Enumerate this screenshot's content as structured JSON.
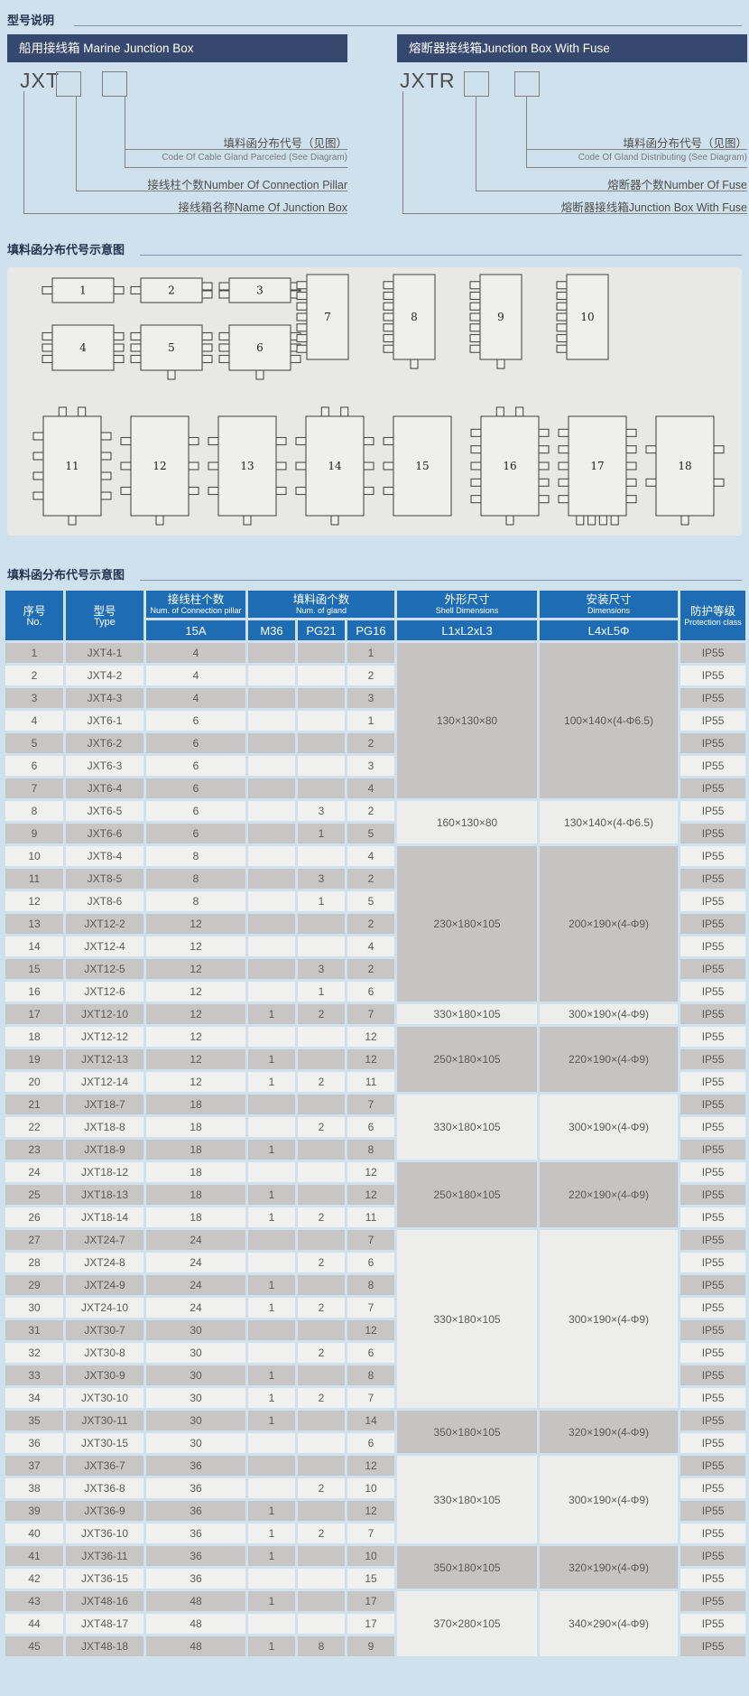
{
  "colors": {
    "page_bg": "#cfe1ed",
    "navy_bar": "#37486e",
    "table_header_blue": "#1e6db4",
    "row_gray": "#c7c6c4",
    "row_light": "#f0f0ee",
    "panel_gray": "#e8e8e6"
  },
  "sections": {
    "model_description_title": "型号说明",
    "gland_diagram_title": "填料函分布代号示意图",
    "gland_table_title": "填料函分布代号示意图"
  },
  "marine": {
    "header": "船用接线箱 Marine Junction Box",
    "code": "JXT",
    "gland_zh": "填料函分布代号（见图）",
    "gland_en": "Code Of Cable Gland Parceled (See Diagram)",
    "pillar": "接线柱个数Number Of Connection Pillar",
    "name": "接线箱名称Name Of Junction Box"
  },
  "fuse": {
    "header": "熔断器接线箱Junction Box With Fuse",
    "code": "JXTR",
    "gland_zh": "填料函分布代号（见图）",
    "gland_en": "Code Of Gland Distributing (See Diagram)",
    "count": "熔断器个数Number Of Fuse",
    "name": "熔断器接线箱Junction Box With Fuse"
  },
  "diagram": {
    "boxes": [
      {
        "label": "1",
        "tabs": {
          "l": 1,
          "r": 1,
          "t": 0,
          "b": 0
        }
      },
      {
        "label": "2",
        "tabs": {
          "l": 1,
          "r": 2,
          "t": 0,
          "b": 0
        }
      },
      {
        "label": "3",
        "tabs": {
          "l": 2,
          "r": 2,
          "t": 0,
          "b": 0
        }
      },
      {
        "label": "4",
        "tabs": {
          "l": 3,
          "r": 3,
          "t": 0,
          "b": 0
        }
      },
      {
        "label": "5",
        "tabs": {
          "l": 3,
          "r": 3,
          "t": 0,
          "b": 1
        }
      },
      {
        "label": "6",
        "tabs": {
          "l": 3,
          "r": 3,
          "t": 0,
          "b": 1
        }
      },
      {
        "label": "7",
        "tabs": {
          "l": 7,
          "r": 0,
          "t": 0,
          "b": 0
        }
      },
      {
        "label": "8",
        "tabs": {
          "l": 7,
          "r": 0,
          "t": 0,
          "b": 1
        }
      },
      {
        "label": "9",
        "tabs": {
          "l": 7,
          "r": 0,
          "t": 0,
          "b": 1
        }
      },
      {
        "label": "10",
        "tabs": {
          "l": 7,
          "r": 0,
          "t": 0,
          "b": 0
        }
      },
      {
        "label": "11",
        "tabs": {
          "l": 4,
          "r": 4,
          "t": 2,
          "b": 1
        }
      },
      {
        "label": "12",
        "tabs": {
          "l": 3,
          "r": 3,
          "t": 0,
          "b": 1
        }
      },
      {
        "label": "13",
        "tabs": {
          "l": 3,
          "r": 3,
          "t": 0,
          "b": 1
        }
      },
      {
        "label": "14",
        "tabs": {
          "l": 3,
          "r": 3,
          "t": 2,
          "b": 1
        }
      },
      {
        "label": "15",
        "tabs": {
          "l": 3,
          "r": 0,
          "t": 0,
          "b": 0
        }
      },
      {
        "label": "16",
        "tabs": {
          "l": 5,
          "r": 5,
          "t": 2,
          "b": 1
        }
      },
      {
        "label": "17",
        "tabs": {
          "l": 5,
          "r": 5,
          "t": 0,
          "b": 4
        }
      },
      {
        "label": "18",
        "tabs": {
          "l": 2,
          "r": 2,
          "t": 0,
          "b": 1
        }
      }
    ]
  },
  "table": {
    "headers": {
      "no_zh": "序号",
      "no_en": "No.",
      "type_zh": "型号",
      "type_en": "Type",
      "pillar_zh": "接线柱个数",
      "pillar_en": "Num. of Connection pillar",
      "gland_zh": "填料函个数",
      "gland_en": "Num. of gland",
      "shell_zh": "外形尺寸",
      "shell_en": "Shell Dimensions",
      "mount_zh": "安装尺寸",
      "mount_en": "Dimensions",
      "prot_zh": "防护等级",
      "prot_en": "Protection class",
      "sub_15a": "15A",
      "sub_m36": "M36",
      "sub_pg21": "PG21",
      "sub_pg16": "PG16",
      "sub_shell": "L1xL2xL3",
      "sub_mount": "L4xL5Φ"
    },
    "rows": [
      {
        "no": "1",
        "type": "JXT4-1",
        "p15a": "4",
        "m36": "",
        "pg21": "",
        "pg16": "1",
        "prot": "IP55"
      },
      {
        "no": "2",
        "type": "JXT4-2",
        "p15a": "4",
        "m36": "",
        "pg21": "",
        "pg16": "2",
        "prot": "IP55"
      },
      {
        "no": "3",
        "type": "JXT4-3",
        "p15a": "4",
        "m36": "",
        "pg21": "",
        "pg16": "3",
        "prot": "IP55"
      },
      {
        "no": "4",
        "type": "JXT6-1",
        "p15a": "6",
        "m36": "",
        "pg21": "",
        "pg16": "1",
        "prot": "IP55"
      },
      {
        "no": "5",
        "type": "JXT6-2",
        "p15a": "6",
        "m36": "",
        "pg21": "",
        "pg16": "2",
        "prot": "IP55"
      },
      {
        "no": "6",
        "type": "JXT6-3",
        "p15a": "6",
        "m36": "",
        "pg21": "",
        "pg16": "3",
        "prot": "IP55"
      },
      {
        "no": "7",
        "type": "JXT6-4",
        "p15a": "6",
        "m36": "",
        "pg21": "",
        "pg16": "4",
        "prot": "IP55"
      },
      {
        "no": "8",
        "type": "JXT6-5",
        "p15a": "6",
        "m36": "",
        "pg21": "3",
        "pg16": "2",
        "prot": "IP55"
      },
      {
        "no": "9",
        "type": "JXT6-6",
        "p15a": "6",
        "m36": "",
        "pg21": "1",
        "pg16": "5",
        "prot": "IP55"
      },
      {
        "no": "10",
        "type": "JXT8-4",
        "p15a": "8",
        "m36": "",
        "pg21": "",
        "pg16": "4",
        "prot": "IP55"
      },
      {
        "no": "11",
        "type": "JXT8-5",
        "p15a": "8",
        "m36": "",
        "pg21": "3",
        "pg16": "2",
        "prot": "IP55"
      },
      {
        "no": "12",
        "type": "JXT8-6",
        "p15a": "8",
        "m36": "",
        "pg21": "1",
        "pg16": "5",
        "prot": "IP55"
      },
      {
        "no": "13",
        "type": "JXT12-2",
        "p15a": "12",
        "m36": "",
        "pg21": "",
        "pg16": "2",
        "prot": "IP55"
      },
      {
        "no": "14",
        "type": "JXT12-4",
        "p15a": "12",
        "m36": "",
        "pg21": "",
        "pg16": "4",
        "prot": "IP55"
      },
      {
        "no": "15",
        "type": "JXT12-5",
        "p15a": "12",
        "m36": "",
        "pg21": "3",
        "pg16": "2",
        "prot": "IP55"
      },
      {
        "no": "16",
        "type": "JXT12-6",
        "p15a": "12",
        "m36": "",
        "pg21": "1",
        "pg16": "6",
        "prot": "IP55"
      },
      {
        "no": "17",
        "type": "JXT12-10",
        "p15a": "12",
        "m36": "1",
        "pg21": "2",
        "pg16": "7",
        "prot": "IP55"
      },
      {
        "no": "18",
        "type": "JXT12-12",
        "p15a": "12",
        "m36": "",
        "pg21": "",
        "pg16": "12",
        "prot": "IP55"
      },
      {
        "no": "19",
        "type": "JXT12-13",
        "p15a": "12",
        "m36": "1",
        "pg21": "",
        "pg16": "12",
        "prot": "IP55"
      },
      {
        "no": "20",
        "type": "JXT12-14",
        "p15a": "12",
        "m36": "1",
        "pg21": "2",
        "pg16": "11",
        "prot": "IP55"
      },
      {
        "no": "21",
        "type": "JXT18-7",
        "p15a": "18",
        "m36": "",
        "pg21": "",
        "pg16": "7",
        "prot": "IP55"
      },
      {
        "no": "22",
        "type": "JXT18-8",
        "p15a": "18",
        "m36": "",
        "pg21": "2",
        "pg16": "6",
        "prot": "IP55"
      },
      {
        "no": "23",
        "type": "JXT18-9",
        "p15a": "18",
        "m36": "1",
        "pg21": "",
        "pg16": "8",
        "prot": "IP55"
      },
      {
        "no": "24",
        "type": "JXT18-12",
        "p15a": "18",
        "m36": "",
        "pg21": "",
        "pg16": "12",
        "prot": "IP55"
      },
      {
        "no": "25",
        "type": "JXT18-13",
        "p15a": "18",
        "m36": "1",
        "pg21": "",
        "pg16": "12",
        "prot": "IP55"
      },
      {
        "no": "26",
        "type": "JXT18-14",
        "p15a": "18",
        "m36": "1",
        "pg21": "2",
        "pg16": "11",
        "prot": "IP55"
      },
      {
        "no": "27",
        "type": "JXT24-7",
        "p15a": "24",
        "m36": "",
        "pg21": "",
        "pg16": "7",
        "prot": "IP55"
      },
      {
        "no": "28",
        "type": "JXT24-8",
        "p15a": "24",
        "m36": "",
        "pg21": "2",
        "pg16": "6",
        "prot": "IP55"
      },
      {
        "no": "29",
        "type": "JXT24-9",
        "p15a": "24",
        "m36": "1",
        "pg21": "",
        "pg16": "8",
        "prot": "IP55"
      },
      {
        "no": "30",
        "type": "JXT24-10",
        "p15a": "24",
        "m36": "1",
        "pg21": "2",
        "pg16": "7",
        "prot": "IP55"
      },
      {
        "no": "31",
        "type": "JXT30-7",
        "p15a": "30",
        "m36": "",
        "pg21": "",
        "pg16": "12",
        "prot": "IP55"
      },
      {
        "no": "32",
        "type": "JXT30-8",
        "p15a": "30",
        "m36": "",
        "pg21": "2",
        "pg16": "6",
        "prot": "IP55"
      },
      {
        "no": "33",
        "type": "JXT30-9",
        "p15a": "30",
        "m36": "1",
        "pg21": "",
        "pg16": "8",
        "prot": "IP55"
      },
      {
        "no": "34",
        "type": "JXT30-10",
        "p15a": "30",
        "m36": "1",
        "pg21": "2",
        "pg16": "7",
        "prot": "IP55"
      },
      {
        "no": "35",
        "type": "JXT30-11",
        "p15a": "30",
        "m36": "1",
        "pg21": "",
        "pg16": "14",
        "prot": "IP55"
      },
      {
        "no": "36",
        "type": "JXT30-15",
        "p15a": "30",
        "m36": "",
        "pg21": "",
        "pg16": "6",
        "prot": "IP55"
      },
      {
        "no": "37",
        "type": "JXT36-7",
        "p15a": "36",
        "m36": "",
        "pg21": "",
        "pg16": "12",
        "prot": "IP55"
      },
      {
        "no": "38",
        "type": "JXT36-8",
        "p15a": "36",
        "m36": "",
        "pg21": "2",
        "pg16": "10",
        "prot": "IP55"
      },
      {
        "no": "39",
        "type": "JXT36-9",
        "p15a": "36",
        "m36": "1",
        "pg21": "",
        "pg16": "12",
        "prot": "IP55"
      },
      {
        "no": "40",
        "type": "JXT36-10",
        "p15a": "36",
        "m36": "1",
        "pg21": "2",
        "pg16": "7",
        "prot": "IP55"
      },
      {
        "no": "41",
        "type": "JXT36-11",
        "p15a": "36",
        "m36": "1",
        "pg21": "",
        "pg16": "10",
        "prot": "IP55"
      },
      {
        "no": "42",
        "type": "JXT36-15",
        "p15a": "36",
        "m36": "",
        "pg21": "",
        "pg16": "15",
        "prot": "IP55"
      },
      {
        "no": "43",
        "type": "JXT48-16",
        "p15a": "48",
        "m36": "1",
        "pg21": "",
        "pg16": "17",
        "prot": "IP55"
      },
      {
        "no": "44",
        "type": "JXT48-17",
        "p15a": "48",
        "m36": "",
        "pg21": "",
        "pg16": "17",
        "prot": "IP55"
      },
      {
        "no": "45",
        "type": "JXT48-18",
        "p15a": "48",
        "m36": "1",
        "pg21": "8",
        "pg16": "9",
        "prot": "IP55"
      }
    ],
    "dim_groups": [
      {
        "from": 1,
        "to": 7,
        "shell": "130×130×80",
        "mount": "100×140×(4-Φ6.5)",
        "shade": "dark"
      },
      {
        "from": 8,
        "to": 9,
        "shell": "160×130×80",
        "mount": "130×140×(4-Φ6.5)",
        "shade": "light"
      },
      {
        "from": 10,
        "to": 16,
        "shell": "230×180×105",
        "mount": "200×190×(4-Φ9)",
        "shade": "dark"
      },
      {
        "from": 17,
        "to": 17,
        "shell": "330×180×105",
        "mount": "300×190×(4-Φ9)",
        "shade": "light"
      },
      {
        "from": 18,
        "to": 20,
        "shell": "250×180×105",
        "mount": "220×190×(4-Φ9)",
        "shade": "dark"
      },
      {
        "from": 21,
        "to": 23,
        "shell": "330×180×105",
        "mount": "300×190×(4-Φ9)",
        "shade": "light"
      },
      {
        "from": 24,
        "to": 26,
        "shell": "250×180×105",
        "mount": "220×190×(4-Φ9)",
        "shade": "dark"
      },
      {
        "from": 27,
        "to": 34,
        "shell": "330×180×105",
        "mount": "300×190×(4-Φ9)",
        "shade": "light"
      },
      {
        "from": 35,
        "to": 36,
        "shell": "350×180×105",
        "mount": "320×190×(4-Φ9)",
        "shade": "dark"
      },
      {
        "from": 37,
        "to": 40,
        "shell": "330×180×105",
        "mount": "300×190×(4-Φ9)",
        "shade": "light"
      },
      {
        "from": 41,
        "to": 42,
        "shell": "350×180×105",
        "mount": "320×190×(4-Φ9)",
        "shade": "dark"
      },
      {
        "from": 43,
        "to": 45,
        "shell": "370×280×105",
        "mount": "340×290×(4-Φ9)",
        "shade": "light"
      }
    ]
  }
}
